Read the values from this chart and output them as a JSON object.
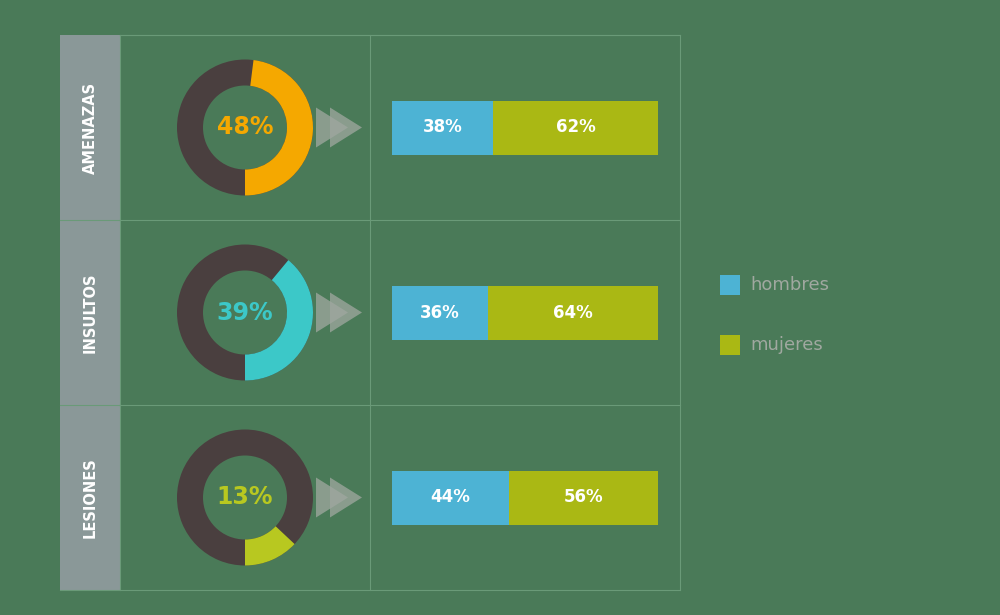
{
  "background_color": "#4a7a58",
  "cell_border_color": "#6a9a78",
  "label_tab_color": "#8a9898",
  "rows": [
    {
      "label": "AMENAZAS",
      "pct": 48,
      "donut_active_color": "#f5a800",
      "donut_inactive_color": "#4a3f3f",
      "text_color": "#f5a800",
      "hombres": 38,
      "mujeres": 62
    },
    {
      "label": "INSULTOS",
      "pct": 39,
      "donut_active_color": "#3cc8c8",
      "donut_inactive_color": "#4a3f3f",
      "text_color": "#3cc8c8",
      "hombres": 36,
      "mujeres": 64
    },
    {
      "label": "LESIONES",
      "pct": 13,
      "donut_active_color": "#b8c820",
      "donut_inactive_color": "#4a3f3f",
      "text_color": "#b8c820",
      "hombres": 44,
      "mujeres": 56
    }
  ],
  "hombres_color": "#4db3d4",
  "mujeres_color": "#aab814",
  "legend_text_color": "#a0a8a0",
  "bar_text_color": "#ffffff",
  "arrow_color": "#a0a8a0"
}
